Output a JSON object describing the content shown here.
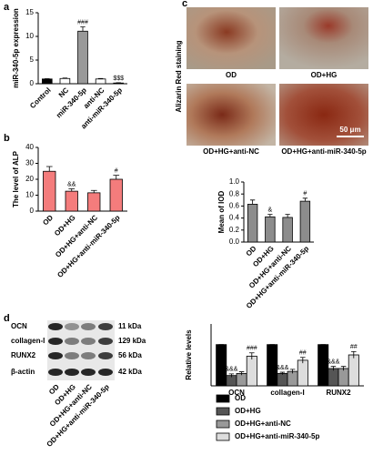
{
  "chart_data": [
    {
      "type": "bar",
      "panel": "a",
      "y_label": "miR-340-5p expression",
      "categories": [
        "Control",
        "NC",
        "miR-340-5p",
        "anti-NC",
        "anti-miR-340-5p"
      ],
      "values": [
        1.0,
        1.1,
        11.1,
        1.0,
        0.15
      ],
      "errors": [
        0.05,
        0.1,
        0.9,
        0.1,
        0.05
      ],
      "colors": [
        "#000000",
        "#ffffff",
        "#999999",
        "#ffffff",
        "#000000"
      ],
      "annotations": [
        null,
        null,
        "###",
        null,
        "$$$"
      ],
      "ylim": [
        0,
        15
      ],
      "yticks": [
        0,
        5,
        10,
        15
      ]
    },
    {
      "type": "bar",
      "panel": "b",
      "y_label": "The level of ALP",
      "categories": [
        "OD",
        "OD+HG",
        "OD+HG+anti-NC",
        "OD+HG+anti-miR-340-5p"
      ],
      "values": [
        25,
        12.5,
        11.5,
        20
      ],
      "errors": [
        3,
        1.5,
        1.5,
        2.5
      ],
      "color": "#f47c7c",
      "annotations": [
        null,
        "&&",
        null,
        "#"
      ],
      "ylim": [
        0,
        40
      ],
      "yticks": [
        0,
        10,
        20,
        30,
        40
      ]
    },
    {
      "type": "bar",
      "panel": "c",
      "y_label": "Mean of IOD",
      "categories": [
        "OD",
        "OD+HG",
        "OD+HG+anti-NC",
        "OD+HG+anti-miR-340-5p"
      ],
      "values": [
        0.63,
        0.42,
        0.41,
        0.68
      ],
      "errors": [
        0.07,
        0.04,
        0.05,
        0.05
      ],
      "color": "#8c8c8c",
      "annotations": [
        null,
        "&",
        null,
        "#"
      ],
      "ylim": [
        0,
        1.0
      ],
      "yticks": [
        {
          "value": 0,
          "label": "0.0"
        },
        {
          "value": 0.2,
          "label": "0.2"
        },
        {
          "value": 0.4,
          "label": "0.4"
        },
        {
          "value": 0.6,
          "label": "0.6"
        },
        {
          "value": 0.8,
          "label": "0.8"
        },
        {
          "value": 1.0,
          "label": "1.0"
        }
      ]
    },
    {
      "type": "grouped_bar",
      "panel": "d",
      "y_label": "Relative levels",
      "categories": [
        "OCN",
        "collagen-I",
        "RUNX2"
      ],
      "series": [
        {
          "name": "OD",
          "color": "#000000",
          "values": [
            1,
            1,
            1
          ],
          "errors": [
            0,
            0,
            0
          ],
          "annotations": [
            null,
            null,
            null
          ]
        },
        {
          "name": "OD+HG",
          "color": "#555555",
          "values": [
            0.25,
            0.3,
            0.42
          ],
          "errors": [
            0.04,
            0.03,
            0.05
          ],
          "annotations": [
            "&&&",
            "&&&",
            "&&&"
          ]
        },
        {
          "name": "OD+HG+anti-NC",
          "color": "#999999",
          "values": [
            0.3,
            0.35,
            0.42
          ],
          "errors": [
            0.04,
            0.05,
            0.05
          ],
          "annotations": [
            null,
            null,
            null
          ]
        },
        {
          "name": "OD+HG+anti-miR-340-5p",
          "color": "#dddddd",
          "values": [
            0.72,
            0.62,
            0.75
          ],
          "errors": [
            0.08,
            0.07,
            0.08
          ],
          "annotations": [
            "###",
            "##",
            "##"
          ]
        }
      ],
      "ylim": [
        0,
        1.5
      ],
      "legend": "bottom"
    }
  ],
  "staining": {
    "title": "Alizarin Red staining",
    "labels": [
      "OD",
      "OD+HG",
      "OD+HG+anti-NC",
      "OD+HG+anti-miR-340-5p"
    ],
    "scale_bar": "50 μm"
  },
  "blot": {
    "proteins": [
      "OCN",
      "collagen-I",
      "RUNX2",
      "β-actin"
    ],
    "sizes": [
      "11 kDa",
      "129 kDa",
      "56 kDa",
      "42 kDa"
    ],
    "lanes": [
      "OD",
      "OD+HG",
      "OD+HG+anti-NC",
      "OD+HG+anti-miR-340-5p"
    ]
  }
}
